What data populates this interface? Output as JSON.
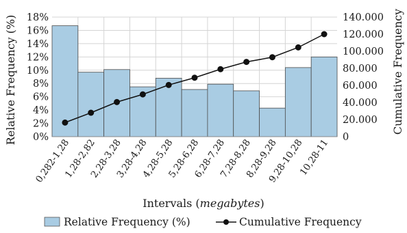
{
  "chart_data": {
    "type": "bar",
    "categories": [
      "0,282-1,28",
      "1,28-2,82",
      "2,28-3,28",
      "3,28-4,28",
      "4,28-5,28",
      "5,28-6,28",
      "6,28-7,28",
      "7,28-8,28",
      "8,28-9,28",
      "9,28-10,28",
      "10,28-11"
    ],
    "bar_series": {
      "name": "Relative Frequency (%)",
      "values": [
        16.7,
        9.7,
        10.1,
        7.5,
        8.8,
        7.1,
        7.9,
        6.9,
        4.3,
        10.4,
        12.0
      ],
      "color": "#a9cce3"
    },
    "line_series": {
      "name": "Cumulative Frequency",
      "values": [
        16500,
        28000,
        40500,
        49500,
        60500,
        69000,
        79000,
        87500,
        93000,
        104500,
        120000
      ],
      "color": "#111111"
    },
    "xlabel": "Intervals (",
    "xlabel_italic": "megabytes",
    "xlabel_end": ")",
    "ylabel_left": "Relative Frequency (%)",
    "ylabel_right": "Cumulative Frequency",
    "y_left_ticks": [
      "0%",
      "2%",
      "4%",
      "6%",
      "8%",
      "10%",
      "12%",
      "14%",
      "16%",
      "18%"
    ],
    "y_left_lim": [
      0,
      18
    ],
    "y_right_ticks": [
      "0",
      "20.000",
      "40.000",
      "60.000",
      "80.000",
      "100.000",
      "120.000",
      "140.000"
    ],
    "y_right_lim": [
      0,
      140000
    ],
    "grid": true,
    "legend_position": "bottom"
  }
}
